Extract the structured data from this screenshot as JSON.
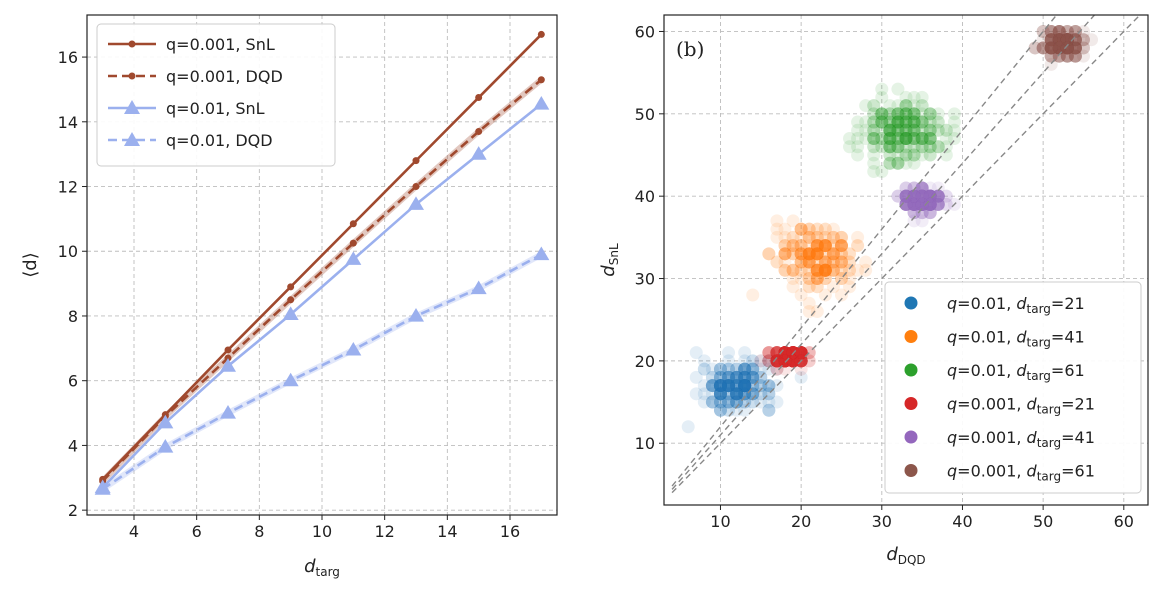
{
  "chart_data": [
    {
      "type": "line",
      "panel_label": "",
      "xlabel": "d",
      "xlabel_sub": "targ",
      "ylabel": "⟨d⟩",
      "xlim": [
        2.5,
        17.5
      ],
      "ylim": [
        1.85,
        17.3
      ],
      "xticks": [
        4,
        6,
        8,
        10,
        12,
        14,
        16
      ],
      "yticks": [
        2,
        4,
        6,
        8,
        10,
        12,
        14,
        16
      ],
      "grid": true,
      "legend_position": "top-left",
      "x": [
        3,
        5,
        7,
        9,
        11,
        13,
        15,
        17
      ],
      "series": [
        {
          "name": "q=0.001, SnL",
          "values": [
            2.95,
            4.95,
            6.95,
            8.9,
            10.85,
            12.8,
            14.75,
            16.7
          ],
          "color": "#a0492e",
          "dash": "solid",
          "marker": "circle"
        },
        {
          "name": "q=0.001, DQD",
          "values": [
            2.9,
            4.9,
            6.7,
            8.5,
            10.25,
            12.0,
            13.7,
            15.3
          ],
          "color": "#a0492e",
          "dash": "dashed",
          "marker": "circle"
        },
        {
          "name": "q=0.01, SnL",
          "values": [
            2.7,
            4.7,
            6.45,
            8.05,
            9.75,
            11.45,
            13.0,
            14.55
          ],
          "color": "#9bb0ee",
          "dash": "solid",
          "marker": "triangle"
        },
        {
          "name": "q=0.01, DQD",
          "values": [
            2.65,
            3.95,
            5.0,
            6.0,
            6.95,
            8.0,
            8.85,
            9.9
          ],
          "color": "#9bb0ee",
          "dash": "dashed",
          "marker": "triangle"
        }
      ]
    },
    {
      "type": "scatter",
      "panel_label": "(b)",
      "xlabel": "d",
      "xlabel_sub": "DQD",
      "ylabel": "d",
      "ylabel_sub": "SnL",
      "xlim": [
        3,
        63
      ],
      "ylim": [
        2.5,
        62
      ],
      "xticks": [
        10,
        20,
        30,
        40,
        50,
        60
      ],
      "yticks": [
        10,
        20,
        30,
        40,
        50,
        60
      ],
      "grid": true,
      "legend_position": "bottom-right",
      "reference_lines_slope": [
        1.0,
        1.1,
        1.2
      ],
      "clusters": [
        {
          "q": "q=0.01",
          "dtarg": "21",
          "label_sub": "targ",
          "color": "#1f77b4",
          "center": [
            12,
            17
          ],
          "spread": [
            4.0,
            2.5
          ],
          "xrange": [
            3,
            20
          ],
          "yrange": [
            12,
            21
          ]
        },
        {
          "q": "q=0.01",
          "dtarg": "41",
          "label_sub": "targ",
          "color": "#ff7f0e",
          "center": [
            22,
            32.5
          ],
          "spread": [
            4.5,
            3.5
          ],
          "xrange": [
            14,
            28
          ],
          "yrange": [
            26,
            37
          ]
        },
        {
          "q": "q=0.01",
          "dtarg": "61",
          "label_sub": "targ",
          "color": "#2ca02c",
          "center": [
            32.5,
            48
          ],
          "spread": [
            4.5,
            3.5
          ],
          "xrange": [
            18,
            40
          ],
          "yrange": [
            40,
            53
          ]
        },
        {
          "q": "q=0.001",
          "dtarg": "21",
          "label_sub": "targ",
          "color": "#d62728",
          "center": [
            18.5,
            20.5
          ],
          "spread": [
            2.0,
            0.8
          ],
          "xrange": [
            15,
            22
          ],
          "yrange": [
            19,
            21
          ]
        },
        {
          "q": "q=0.001",
          "dtarg": "41",
          "label_sub": "targ",
          "color": "#9467bd",
          "center": [
            35,
            39.5
          ],
          "spread": [
            2.2,
            1.3
          ],
          "xrange": [
            31,
            40
          ],
          "yrange": [
            37,
            41
          ]
        },
        {
          "q": "q=0.001",
          "dtarg": "61",
          "label_sub": "targ",
          "color": "#8c564b",
          "center": [
            52.5,
            58.5
          ],
          "spread": [
            2.5,
            1.5
          ],
          "xrange": [
            47,
            57
          ],
          "yrange": [
            55,
            62
          ]
        }
      ]
    }
  ]
}
